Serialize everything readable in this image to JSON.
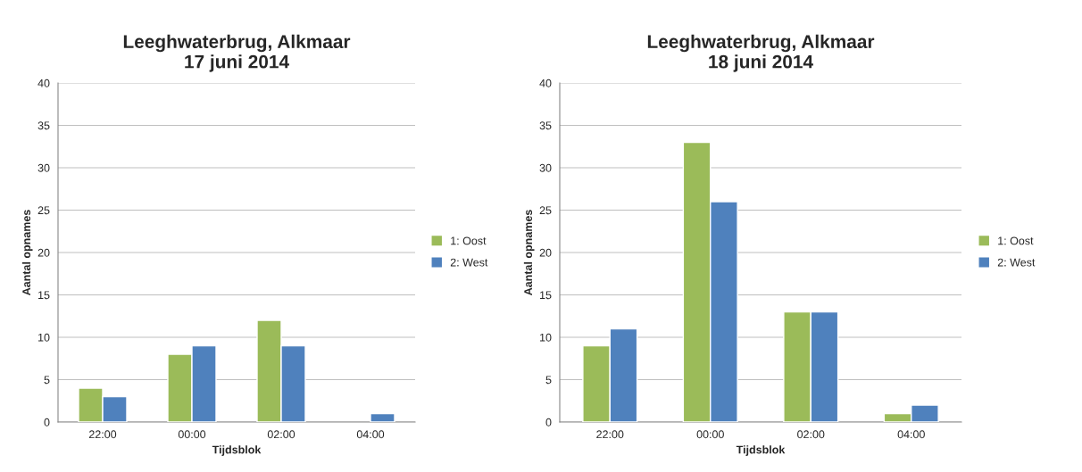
{
  "chart_data": [
    {
      "type": "bar",
      "title": "Leeghwaterbrug, Alkmaar\n17 juni 2014",
      "xlabel": "Tijdsblok",
      "ylabel": "Aantal opnames",
      "categories": [
        "22:00",
        "00:00",
        "02:00",
        "04:00"
      ],
      "series": [
        {
          "name": "1: Oost",
          "color": "#9bbb59",
          "values": [
            4,
            8,
            12,
            null
          ]
        },
        {
          "name": "2: West",
          "color": "#4f81bd",
          "values": [
            3,
            9,
            9,
            1
          ]
        }
      ],
      "ylim": [
        0,
        40
      ],
      "yticks": [
        0,
        5,
        10,
        15,
        20,
        25,
        30,
        35,
        40
      ],
      "grid": "y",
      "legend": "right"
    },
    {
      "type": "bar",
      "title": "Leeghwaterbrug, Alkmaar\n18 juni 2014",
      "xlabel": "Tijdsblok",
      "ylabel": "Aantal opnames",
      "categories": [
        "22:00",
        "00:00",
        "02:00",
        "04:00"
      ],
      "series": [
        {
          "name": "1: Oost",
          "color": "#9bbb59",
          "values": [
            9,
            33,
            13,
            1
          ]
        },
        {
          "name": "2: West",
          "color": "#4f81bd",
          "values": [
            11,
            26,
            13,
            2
          ]
        }
      ],
      "ylim": [
        0,
        40
      ],
      "yticks": [
        0,
        5,
        10,
        15,
        20,
        25,
        30,
        35,
        40
      ],
      "grid": "y",
      "legend": "right"
    }
  ]
}
